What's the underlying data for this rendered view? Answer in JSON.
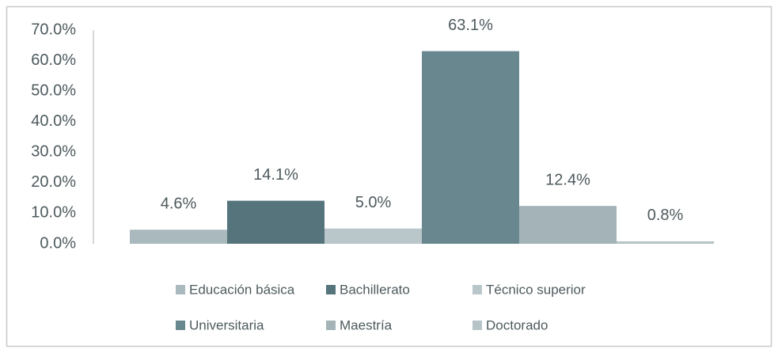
{
  "chart_data": {
    "type": "bar",
    "categories": [
      "Educación básica",
      "Bachillerato",
      "Técnico superior",
      "Universitaria",
      "Maestría",
      "Doctorado"
    ],
    "values": [
      4.6,
      14.1,
      5.0,
      63.1,
      12.4,
      0.8
    ],
    "value_labels": [
      "4.6%",
      "14.1%",
      "5.0%",
      "63.1%",
      "12.4%",
      "0.8%"
    ],
    "colors": [
      "#a9b9bd",
      "#56747c",
      "#b9c6ca",
      "#68878f",
      "#a3b3b7",
      "#b6c4c8"
    ],
    "ylim": [
      0,
      70
    ],
    "yticks": [
      {
        "value": 0,
        "label": "0.0%"
      },
      {
        "value": 10,
        "label": "10.0%"
      },
      {
        "value": 20,
        "label": "20.0%"
      },
      {
        "value": 30,
        "label": "30.0%"
      },
      {
        "value": 40,
        "label": "40.0%"
      },
      {
        "value": 50,
        "label": "50.0%"
      },
      {
        "value": 60,
        "label": "60.0%"
      },
      {
        "value": 70,
        "label": "70.0%"
      }
    ],
    "grid": false
  }
}
